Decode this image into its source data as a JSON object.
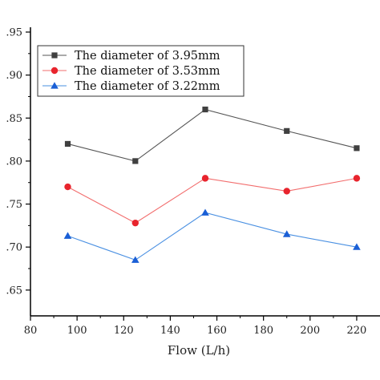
{
  "chart_data": {
    "type": "line",
    "title": "",
    "xlabel": "Flow (L/h)",
    "ylabel": "",
    "xlim": [
      80,
      230
    ],
    "ylim": [
      0.62,
      0.95
    ],
    "x_ticks": [
      80,
      100,
      120,
      140,
      160,
      180,
      200,
      220
    ],
    "y_ticks": [
      0.65,
      0.7,
      0.75,
      0.8,
      0.85,
      0.9,
      0.95
    ],
    "y_tick_labels": [
      ".65",
      ".70",
      ".75",
      ".80",
      ".85",
      ".90",
      ".95"
    ],
    "x": [
      96,
      125,
      155,
      190,
      220
    ],
    "grid": false,
    "legend_position": "top-left",
    "series": [
      {
        "name": "The diameter of 3.95mm",
        "marker": "square",
        "color": "#555555",
        "marker_color": "#404040",
        "values": [
          0.82,
          0.8,
          0.86,
          0.835,
          0.815
        ]
      },
      {
        "name": "The diameter of 3.53mm",
        "marker": "circle",
        "color": "#f26d6d",
        "marker_color": "#e8242d",
        "values": [
          0.77,
          0.728,
          0.78,
          0.765,
          0.78
        ]
      },
      {
        "name": "The diameter of 3.22mm",
        "marker": "triangle",
        "color": "#4a90e2",
        "marker_color": "#1a5fd6",
        "values": [
          0.713,
          0.685,
          0.74,
          0.715,
          0.7
        ]
      }
    ]
  }
}
